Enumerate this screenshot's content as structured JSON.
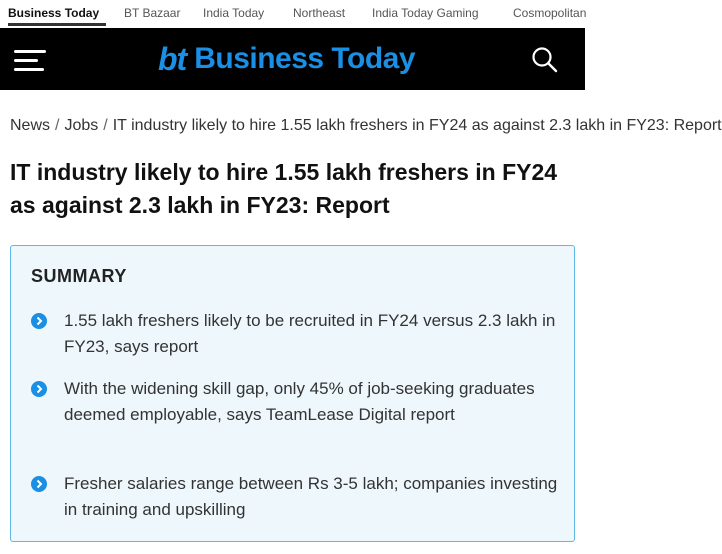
{
  "topnav": {
    "tabs": [
      {
        "label": "Business Today",
        "active": true
      },
      {
        "label": "BT Bazaar"
      },
      {
        "label": "India Today"
      },
      {
        "label": "Northeast"
      },
      {
        "label": "India Today Gaming"
      },
      {
        "label": "Cosmopolitan"
      }
    ]
  },
  "header": {
    "logo_mark": "bt",
    "logo_text": "Business Today",
    "brand_color": "#1a8fe3",
    "menu_icon": "hamburger-icon",
    "search_icon": "search-icon"
  },
  "breadcrumb": {
    "items": [
      "News",
      "Jobs",
      "IT industry likely to hire 1.55 lakh freshers in FY24 as against 2.3 lakh in FY23: Report"
    ]
  },
  "article": {
    "headline": "IT industry likely to hire 1.55 lakh freshers in FY24 as against 2.3 lakh in FY23: Report"
  },
  "summary": {
    "title": "SUMMARY",
    "points": [
      "1.55 lakh freshers likely to be recruited in FY24 versus 2.3 lakh in FY23, says report",
      "With the widening skill gap, only 45% of job-seeking graduates deemed employable, says TeamLease Digital report",
      "Fresher salaries range between Rs 3-5 lakh; companies investing in training and upskilling"
    ]
  }
}
